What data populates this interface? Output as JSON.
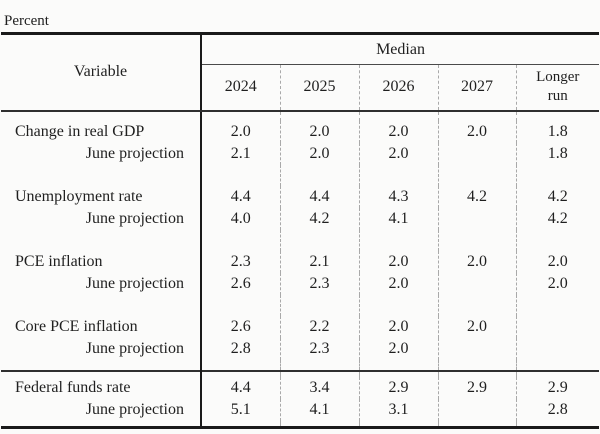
{
  "unit_label": "Percent",
  "colors": {
    "text": "#1f1f1f",
    "rule_heavy": "#1a1a1a",
    "rule_medium": "#2f2f2f",
    "divider_dashed": "#a9a9a9",
    "background": "#fbfbfa"
  },
  "table": {
    "variable_header": "Variable",
    "median_header": "Median",
    "year_headers": [
      "2024",
      "2025",
      "2026",
      "2027"
    ],
    "longer_run_header_line1": "Longer",
    "longer_run_header_line2": "run",
    "rows": [
      {
        "label": "Change in real GDP",
        "values": [
          "2.0",
          "2.0",
          "2.0",
          "2.0",
          "1.8"
        ]
      },
      {
        "label": "June projection",
        "values": [
          "2.1",
          "2.0",
          "2.0",
          "",
          "1.8"
        ]
      },
      {
        "label": "Unemployment rate",
        "values": [
          "4.4",
          "4.4",
          "4.3",
          "4.2",
          "4.2"
        ]
      },
      {
        "label": "June projection",
        "values": [
          "4.0",
          "4.2",
          "4.1",
          "",
          "4.2"
        ]
      },
      {
        "label": "PCE inflation",
        "values": [
          "2.3",
          "2.1",
          "2.0",
          "2.0",
          "2.0"
        ]
      },
      {
        "label": "June projection",
        "values": [
          "2.6",
          "2.3",
          "2.0",
          "",
          "2.0"
        ]
      },
      {
        "label": "Core PCE inflation",
        "values": [
          "2.6",
          "2.2",
          "2.0",
          "2.0",
          ""
        ]
      },
      {
        "label": "June projection",
        "values": [
          "2.8",
          "2.3",
          "2.0",
          "",
          ""
        ]
      },
      {
        "label": "Federal funds rate",
        "values": [
          "4.4",
          "3.4",
          "2.9",
          "2.9",
          "2.9"
        ]
      },
      {
        "label": "June projection",
        "values": [
          "5.1",
          "4.1",
          "3.1",
          "",
          "2.8"
        ]
      }
    ]
  }
}
